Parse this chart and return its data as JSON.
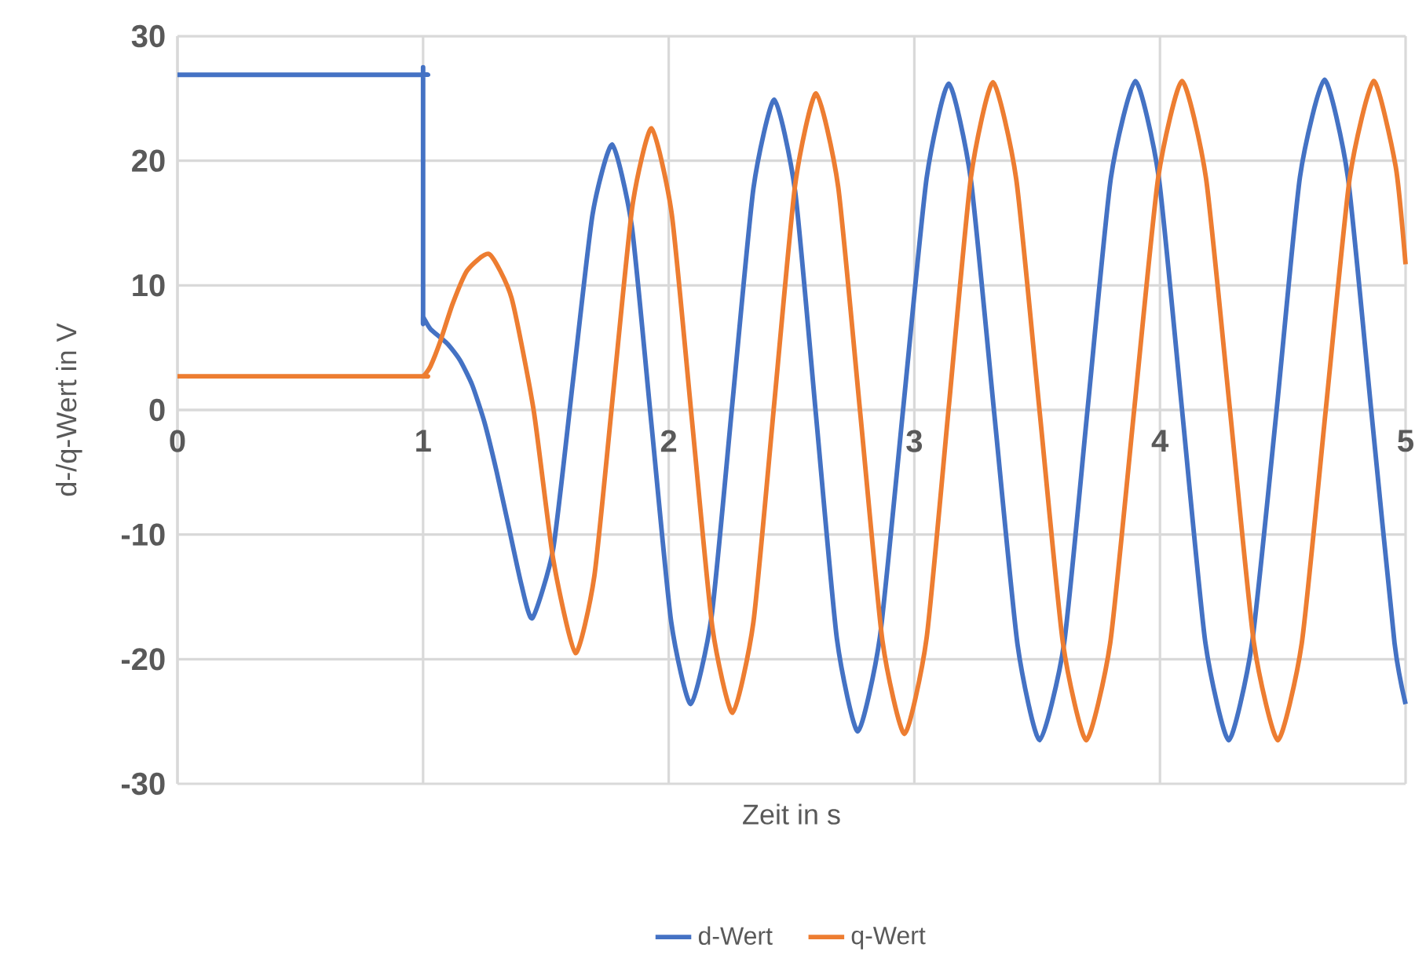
{
  "chart_data": {
    "type": "line",
    "xlabel": "Zeit in s",
    "ylabel": "d-/q-Wert in V",
    "xlim": [
      0,
      5
    ],
    "ylim": [
      -30,
      30
    ],
    "xticks": [
      0,
      1,
      2,
      3,
      4,
      5
    ],
    "yticks": [
      -30,
      -20,
      -10,
      0,
      10,
      20,
      30
    ],
    "grid": true,
    "legend": "bottom",
    "series": [
      {
        "name": "d-Wert",
        "color": "#4472c4",
        "x": [
          0,
          0.5,
          0.998,
          1.0,
          1.0,
          1.0,
          1.0,
          1.005,
          1.03,
          1.1,
          1.15,
          1.2,
          1.25,
          1.3,
          1.35,
          1.4,
          1.445,
          1.53,
          1.61,
          1.69,
          1.77,
          1.85,
          1.93,
          2.01,
          2.09,
          2.175,
          2.26,
          2.345,
          2.43,
          2.515,
          2.6,
          2.685,
          2.77,
          2.86,
          2.955,
          3.05,
          3.14,
          3.23,
          3.325,
          3.42,
          3.51,
          3.61,
          3.705,
          3.8,
          3.9,
          3.995,
          4.09,
          4.185,
          4.28,
          4.375,
          4.475,
          4.57,
          4.67,
          4.765,
          4.86,
          4.955,
          5.0
        ],
        "values": [
          26.9,
          26.9,
          26.9,
          26.9,
          26.6,
          7.8,
          7.5,
          7.3,
          6.5,
          5.3,
          4.0,
          2.0,
          -1.0,
          -5.0,
          -9.5,
          -14.0,
          -16.7,
          -11.1,
          2.3,
          15.7,
          21.3,
          14.7,
          -1.2,
          -17.0,
          -23.6,
          -16.5,
          0.7,
          17.8,
          24.9,
          17.5,
          -0.5,
          -18.4,
          -25.8,
          -18.2,
          0.2,
          18.6,
          26.2,
          18.5,
          -0.2,
          -18.8,
          -26.5,
          -18.7,
          0,
          18.6,
          26.4,
          18.7,
          0,
          -18.7,
          -26.5,
          -18.7,
          0,
          18.7,
          26.5,
          18.7,
          0,
          -18.7,
          -23.6
        ]
      },
      {
        "name": "q-Wert",
        "color": "#ed7d31",
        "x": [
          0,
          0.5,
          0.998,
          1.0,
          1.01,
          1.03,
          1.07,
          1.12,
          1.18,
          1.27,
          1.36,
          1.45,
          1.53,
          1.62,
          1.6975,
          1.775,
          1.8525,
          1.93,
          2.0125,
          2.095,
          2.1775,
          2.26,
          2.345,
          2.43,
          2.515,
          2.6,
          2.69,
          2.78,
          2.87,
          2.96,
          3.05,
          3.14,
          3.23,
          3.32,
          3.415,
          3.51,
          3.605,
          3.7,
          3.7975,
          3.895,
          3.9925,
          4.09,
          4.1875,
          4.285,
          4.3825,
          4.48,
          4.5775,
          4.675,
          4.7725,
          4.87,
          4.96,
          5.0
        ],
        "values": [
          2.7,
          2.7,
          2.7,
          2.7,
          2.9,
          3.5,
          5.5,
          8.5,
          11.2,
          12.5,
          9.0,
          0,
          -12.0,
          -19.5,
          -13.3,
          1.6,
          16.4,
          22.6,
          15.7,
          -0.9,
          -17.4,
          -24.3,
          -17.0,
          0.6,
          18.1,
          25.4,
          17.9,
          -0.3,
          -18.5,
          -26.0,
          -18.3,
          0.2,
          18.6,
          26.3,
          18.5,
          -0.1,
          -18.7,
          -26.5,
          -18.7,
          0,
          18.6,
          26.4,
          18.6,
          0,
          -18.7,
          -26.5,
          -18.7,
          0,
          18.6,
          26.4,
          19.5,
          11.7
        ]
      }
    ]
  }
}
